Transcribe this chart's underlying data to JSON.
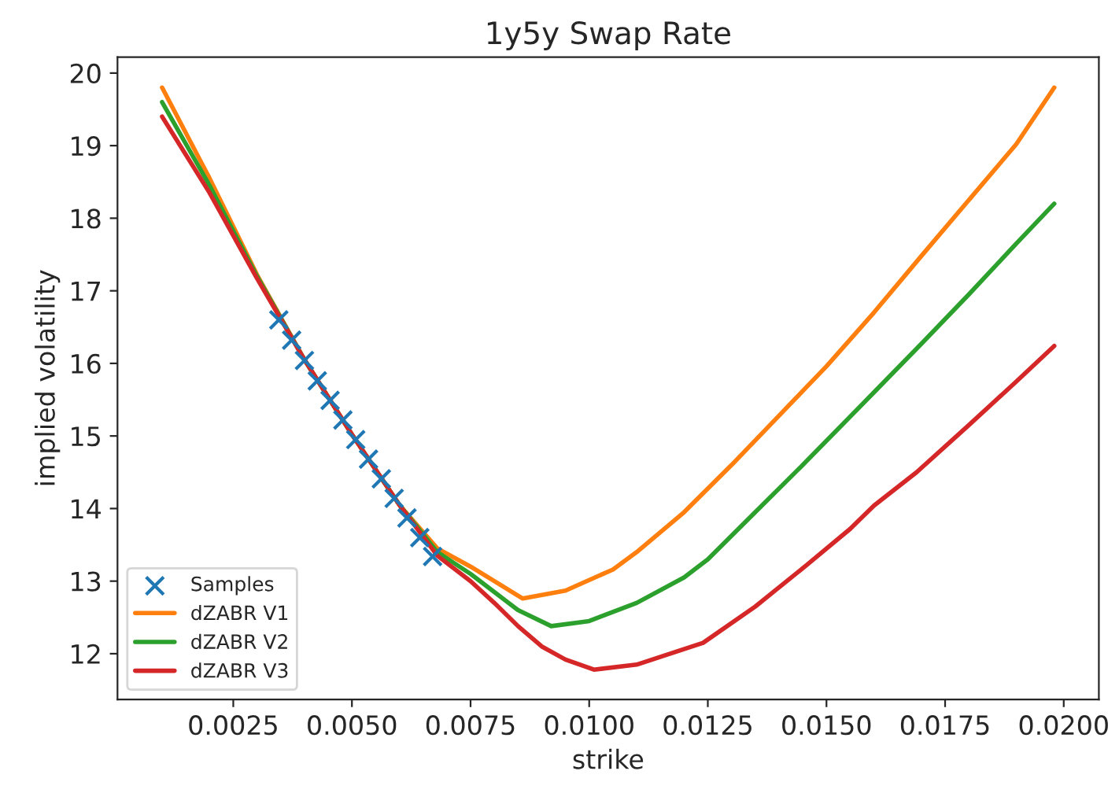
{
  "chart_data": {
    "type": "line",
    "title": "1y5y Swap Rate",
    "xlabel": "strike",
    "ylabel": "implied volatility",
    "xlim": [
      6e-05,
      0.02074
    ],
    "ylim": [
      11.37,
      20.22
    ],
    "xticks": [
      {
        "value": 0.0025,
        "label": "0.0025"
      },
      {
        "value": 0.005,
        "label": "0.0050"
      },
      {
        "value": 0.0075,
        "label": "0.0075"
      },
      {
        "value": 0.01,
        "label": "0.0100"
      },
      {
        "value": 0.0125,
        "label": "0.0125"
      },
      {
        "value": 0.015,
        "label": "0.0150"
      },
      {
        "value": 0.0175,
        "label": "0.0175"
      },
      {
        "value": 0.02,
        "label": "0.0200"
      }
    ],
    "yticks": [
      12,
      13,
      14,
      15,
      16,
      17,
      18,
      19,
      20
    ],
    "grid": false,
    "legend": "bottom left",
    "series": [
      {
        "name": "Samples",
        "type": "scatter",
        "marker": "cross",
        "color": "#1f77b4",
        "x": [
          0.00346,
          0.00373,
          0.004,
          0.00427,
          0.00454,
          0.00481,
          0.00508,
          0.00535,
          0.00562,
          0.00589,
          0.00616,
          0.00643,
          0.0067
        ],
        "values": [
          16.6,
          16.32,
          16.04,
          15.76,
          15.49,
          15.22,
          14.95,
          14.68,
          14.41,
          14.14,
          13.87,
          13.6,
          13.34
        ]
      },
      {
        "name": "dZABR V1",
        "color": "#ff7f0e",
        "x": [
          0.001,
          0.002,
          0.003,
          0.004,
          0.005,
          0.006,
          0.0068,
          0.0075,
          0.008,
          0.0086,
          0.0095,
          0.0105,
          0.011,
          0.012,
          0.013,
          0.014,
          0.015,
          0.016,
          0.017,
          0.018,
          0.019,
          0.0198
        ],
        "values": [
          19.8,
          18.55,
          17.22,
          16.05,
          15.02,
          14.05,
          13.45,
          13.2,
          13.0,
          12.76,
          12.87,
          13.16,
          13.4,
          13.95,
          14.6,
          15.28,
          15.96,
          16.7,
          17.48,
          18.25,
          19.02,
          19.8
        ]
      },
      {
        "name": "dZABR V2",
        "color": "#2ca02c",
        "x": [
          0.001,
          0.002,
          0.003,
          0.004,
          0.005,
          0.006,
          0.0068,
          0.0075,
          0.008,
          0.0085,
          0.0092,
          0.01,
          0.011,
          0.012,
          0.0125,
          0.0135,
          0.0145,
          0.016,
          0.017,
          0.018,
          0.019,
          0.0198
        ],
        "values": [
          19.6,
          18.45,
          17.2,
          16.05,
          15.02,
          14.05,
          13.4,
          13.1,
          12.85,
          12.6,
          12.38,
          12.45,
          12.7,
          13.05,
          13.3,
          13.95,
          14.6,
          15.6,
          16.27,
          16.95,
          17.65,
          18.2
        ]
      },
      {
        "name": "dZABR V3",
        "color": "#d62728",
        "x": [
          0.001,
          0.002,
          0.003,
          0.004,
          0.005,
          0.006,
          0.0068,
          0.0075,
          0.008,
          0.0085,
          0.009,
          0.0095,
          0.0101,
          0.011,
          0.0124,
          0.0135,
          0.0146,
          0.0155,
          0.016,
          0.0169,
          0.018,
          0.019,
          0.0198
        ],
        "values": [
          19.4,
          18.35,
          17.17,
          16.05,
          15.02,
          14.05,
          13.35,
          13.0,
          12.7,
          12.38,
          12.1,
          11.92,
          11.78,
          11.85,
          12.15,
          12.65,
          13.23,
          13.72,
          14.04,
          14.5,
          15.15,
          15.75,
          16.24
        ]
      }
    ]
  }
}
